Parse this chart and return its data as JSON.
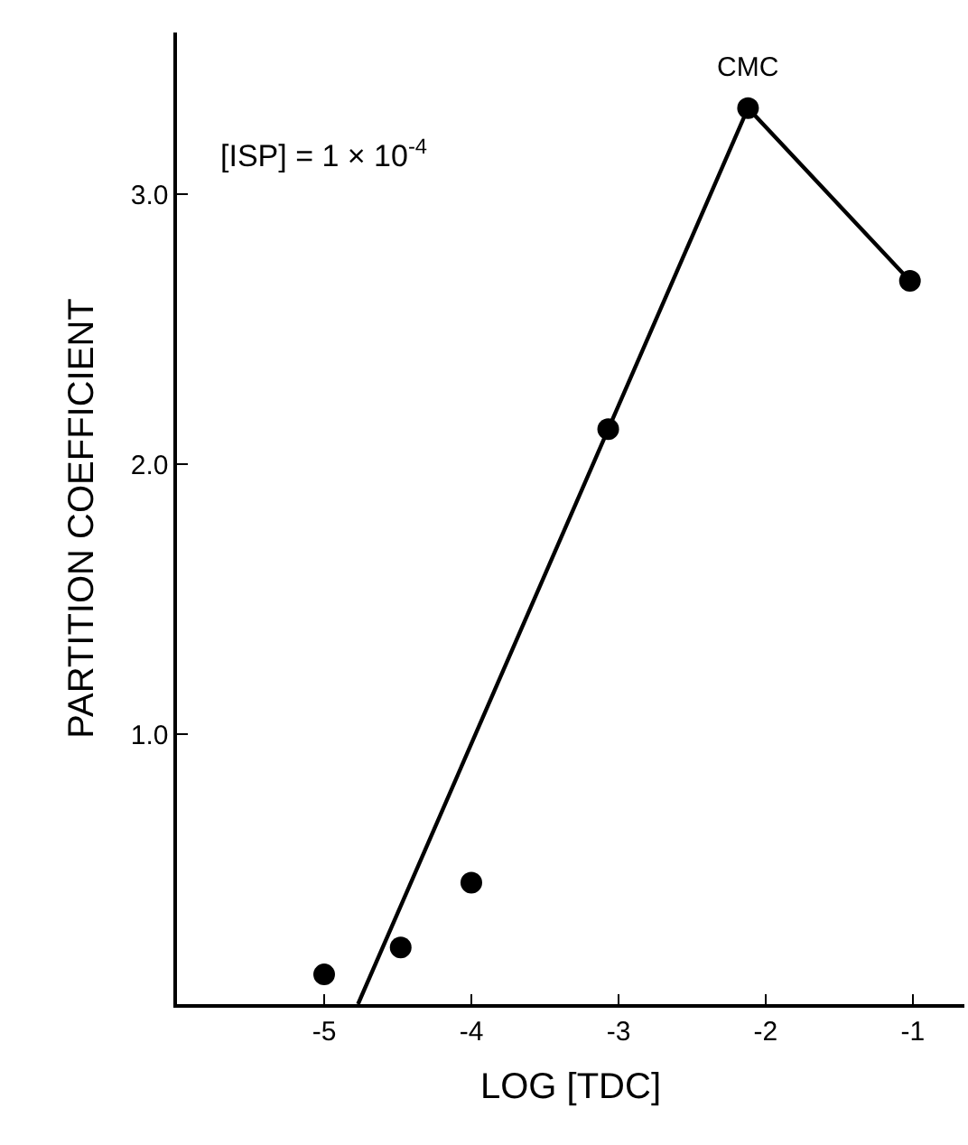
{
  "chart_data": {
    "type": "scatter",
    "xlabel": "LOG [TDC]",
    "ylabel": "PARTITION COEFFICIENT",
    "xlim": [
      -6.0,
      -0.65
    ],
    "ylim": [
      0,
      3.6
    ],
    "xticks": [
      -5,
      -4,
      -3,
      -2,
      -1
    ],
    "yticks": [
      {
        "value": 1,
        "label": "1.0"
      },
      {
        "value": 2,
        "label": "2.0"
      },
      {
        "value": 3,
        "label": "3.0"
      }
    ],
    "marker": "circle",
    "series": [
      {
        "color": "#000000",
        "x": [
          -5.0,
          -4.48,
          -4.0,
          -3.07,
          -2.12,
          -1.02
        ],
        "values": [
          0.11,
          0.21,
          0.45,
          2.13,
          3.32,
          2.68
        ]
      },
      {
        "type": "line",
        "marker": "none",
        "color": "#000000",
        "line_style": "solid",
        "x": [
          -4.77,
          -3.07,
          -2.12,
          -1.02
        ],
        "values": [
          0,
          2.13,
          3.32,
          2.68
        ]
      }
    ],
    "annotations": [
      {
        "text": "CMC",
        "x": -2.12,
        "y": 3.32
      },
      "[ISP] = 1 × 10$^{-4}$"
    ]
  }
}
